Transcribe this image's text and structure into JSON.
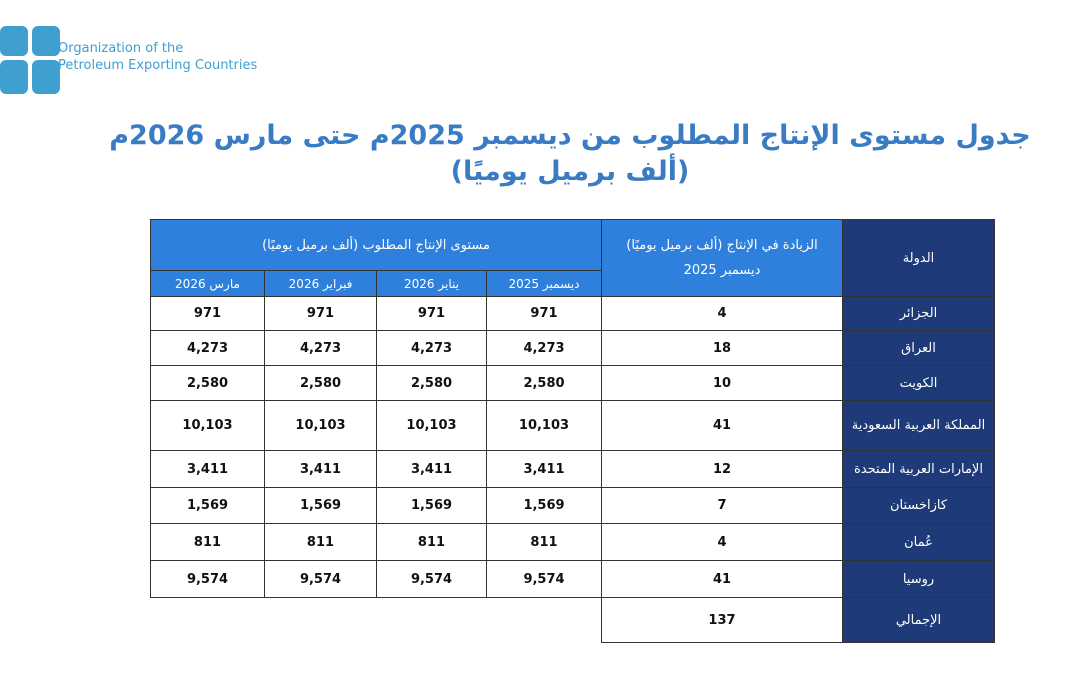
{
  "logo": {
    "line1": "Organization of the",
    "line2": "Petroleum Exporting Countries",
    "brand_color": "#3f9fd0"
  },
  "title": {
    "line1": "جدول مستوى الإنتاج المطلوب من ديسمبر 2025م حتى مارس 2026م",
    "line2": "(ألف برميل يوميًا)"
  },
  "table": {
    "headers": {
      "country": "الدولة",
      "increase": "الزيادة في الإنتاج (ألف برميل يوميًا)",
      "increase_month": "ديسمبر 2025",
      "production": "مستوى الإنتاج المطلوب (ألف برميل يوميًا)",
      "months": [
        "ديسمبر 2025",
        "يناير 2026",
        "فبراير 2026",
        "مارس 2026"
      ]
    },
    "rows": [
      {
        "country": "الجزائر",
        "increase": "4",
        "values": [
          "971",
          "971",
          "971",
          "971"
        ]
      },
      {
        "country": "العراق",
        "increase": "18",
        "values": [
          "4,273",
          "4,273",
          "4,273",
          "4,273"
        ]
      },
      {
        "country": "الكويت",
        "increase": "10",
        "values": [
          "2,580",
          "2,580",
          "2,580",
          "2,580"
        ]
      },
      {
        "country": "المملكة العربية السعودية",
        "increase": "41",
        "values": [
          "10,103",
          "10,103",
          "10,103",
          "10,103"
        ]
      },
      {
        "country": "الإمارات العربية المتحدة",
        "increase": "12",
        "values": [
          "3,411",
          "3,411",
          "3,411",
          "3,411"
        ]
      },
      {
        "country": "كازاخستان",
        "increase": "7",
        "values": [
          "1,569",
          "1,569",
          "1,569",
          "1,569"
        ]
      },
      {
        "country": "عُمان",
        "increase": "4",
        "values": [
          "811",
          "811",
          "811",
          "811"
        ]
      },
      {
        "country": "روسيا",
        "increase": "41",
        "values": [
          "9,574",
          "9,574",
          "9,574",
          "9,574"
        ]
      }
    ],
    "total": {
      "label": "الإجمالي",
      "increase": "137"
    },
    "colors": {
      "header_blue": "#2f80dc",
      "country_navy": "#1e3a78",
      "title_blue": "#3a7cc4"
    }
  }
}
